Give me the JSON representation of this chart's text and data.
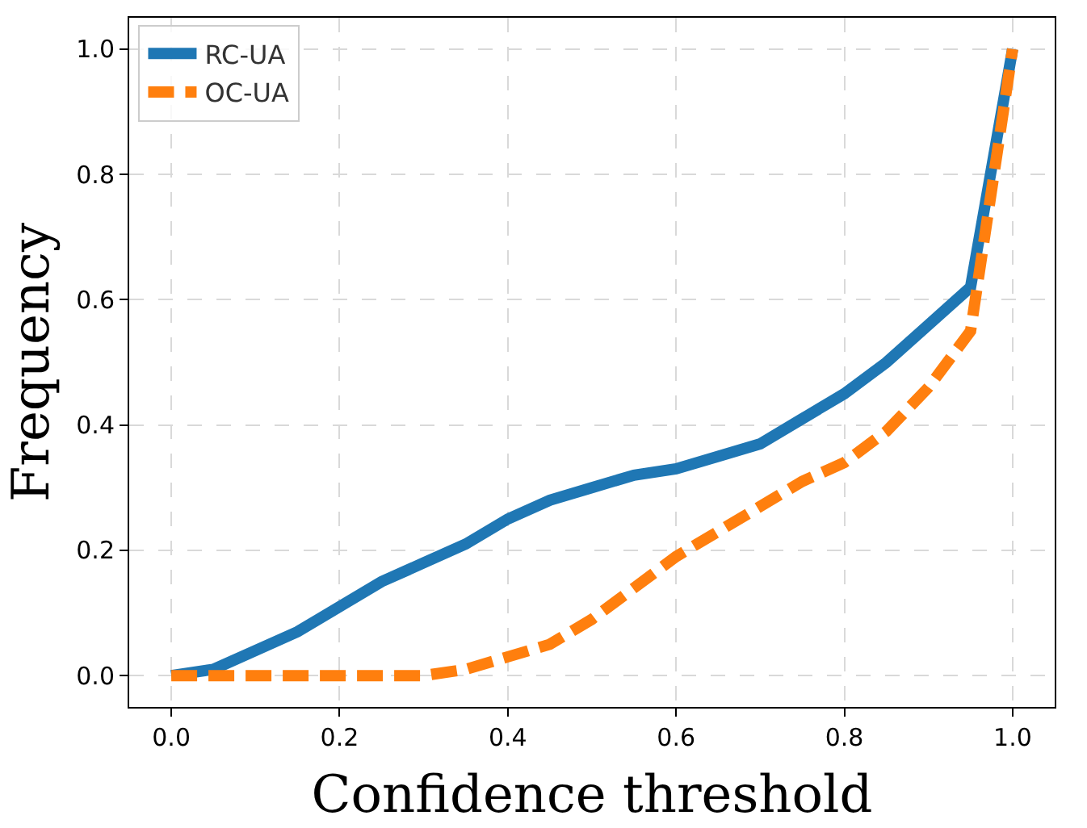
{
  "chart_data": {
    "type": "line",
    "xlabel": "Confidence threshold",
    "ylabel": "Frequency",
    "x": [
      0.0,
      0.05,
      0.1,
      0.15,
      0.2,
      0.25,
      0.3,
      0.35,
      0.4,
      0.45,
      0.5,
      0.55,
      0.6,
      0.65,
      0.7,
      0.75,
      0.8,
      0.85,
      0.9,
      0.95,
      1.0
    ],
    "series": [
      {
        "name": "RC-UA",
        "color": "#1f77b4",
        "line_style": "solid",
        "values": [
          0.0,
          0.01,
          0.04,
          0.07,
          0.11,
          0.15,
          0.18,
          0.21,
          0.25,
          0.28,
          0.3,
          0.32,
          0.33,
          0.35,
          0.37,
          0.41,
          0.45,
          0.5,
          0.56,
          0.62,
          1.0
        ]
      },
      {
        "name": "OC-UA",
        "color": "#ff7f0e",
        "line_style": "dashed",
        "values": [
          0.0,
          0.0,
          0.0,
          0.0,
          0.0,
          0.0,
          0.0,
          0.01,
          0.03,
          0.05,
          0.09,
          0.14,
          0.19,
          0.23,
          0.27,
          0.31,
          0.34,
          0.39,
          0.46,
          0.55,
          1.0
        ]
      }
    ],
    "xlim": [
      -0.05,
      1.05
    ],
    "ylim": [
      -0.05,
      1.05
    ],
    "xticks": [
      {
        "value": 0.0,
        "label": "0.0"
      },
      0.2,
      0.4,
      0.6,
      0.8,
      {
        "value": 1.0,
        "label": "1.0"
      }
    ],
    "yticks": [
      {
        "value": 0.0,
        "label": "0.0"
      },
      0.2,
      0.4,
      0.6,
      0.8,
      {
        "value": 1.0,
        "label": "1.0"
      }
    ],
    "grid": true,
    "legend": "top left"
  }
}
